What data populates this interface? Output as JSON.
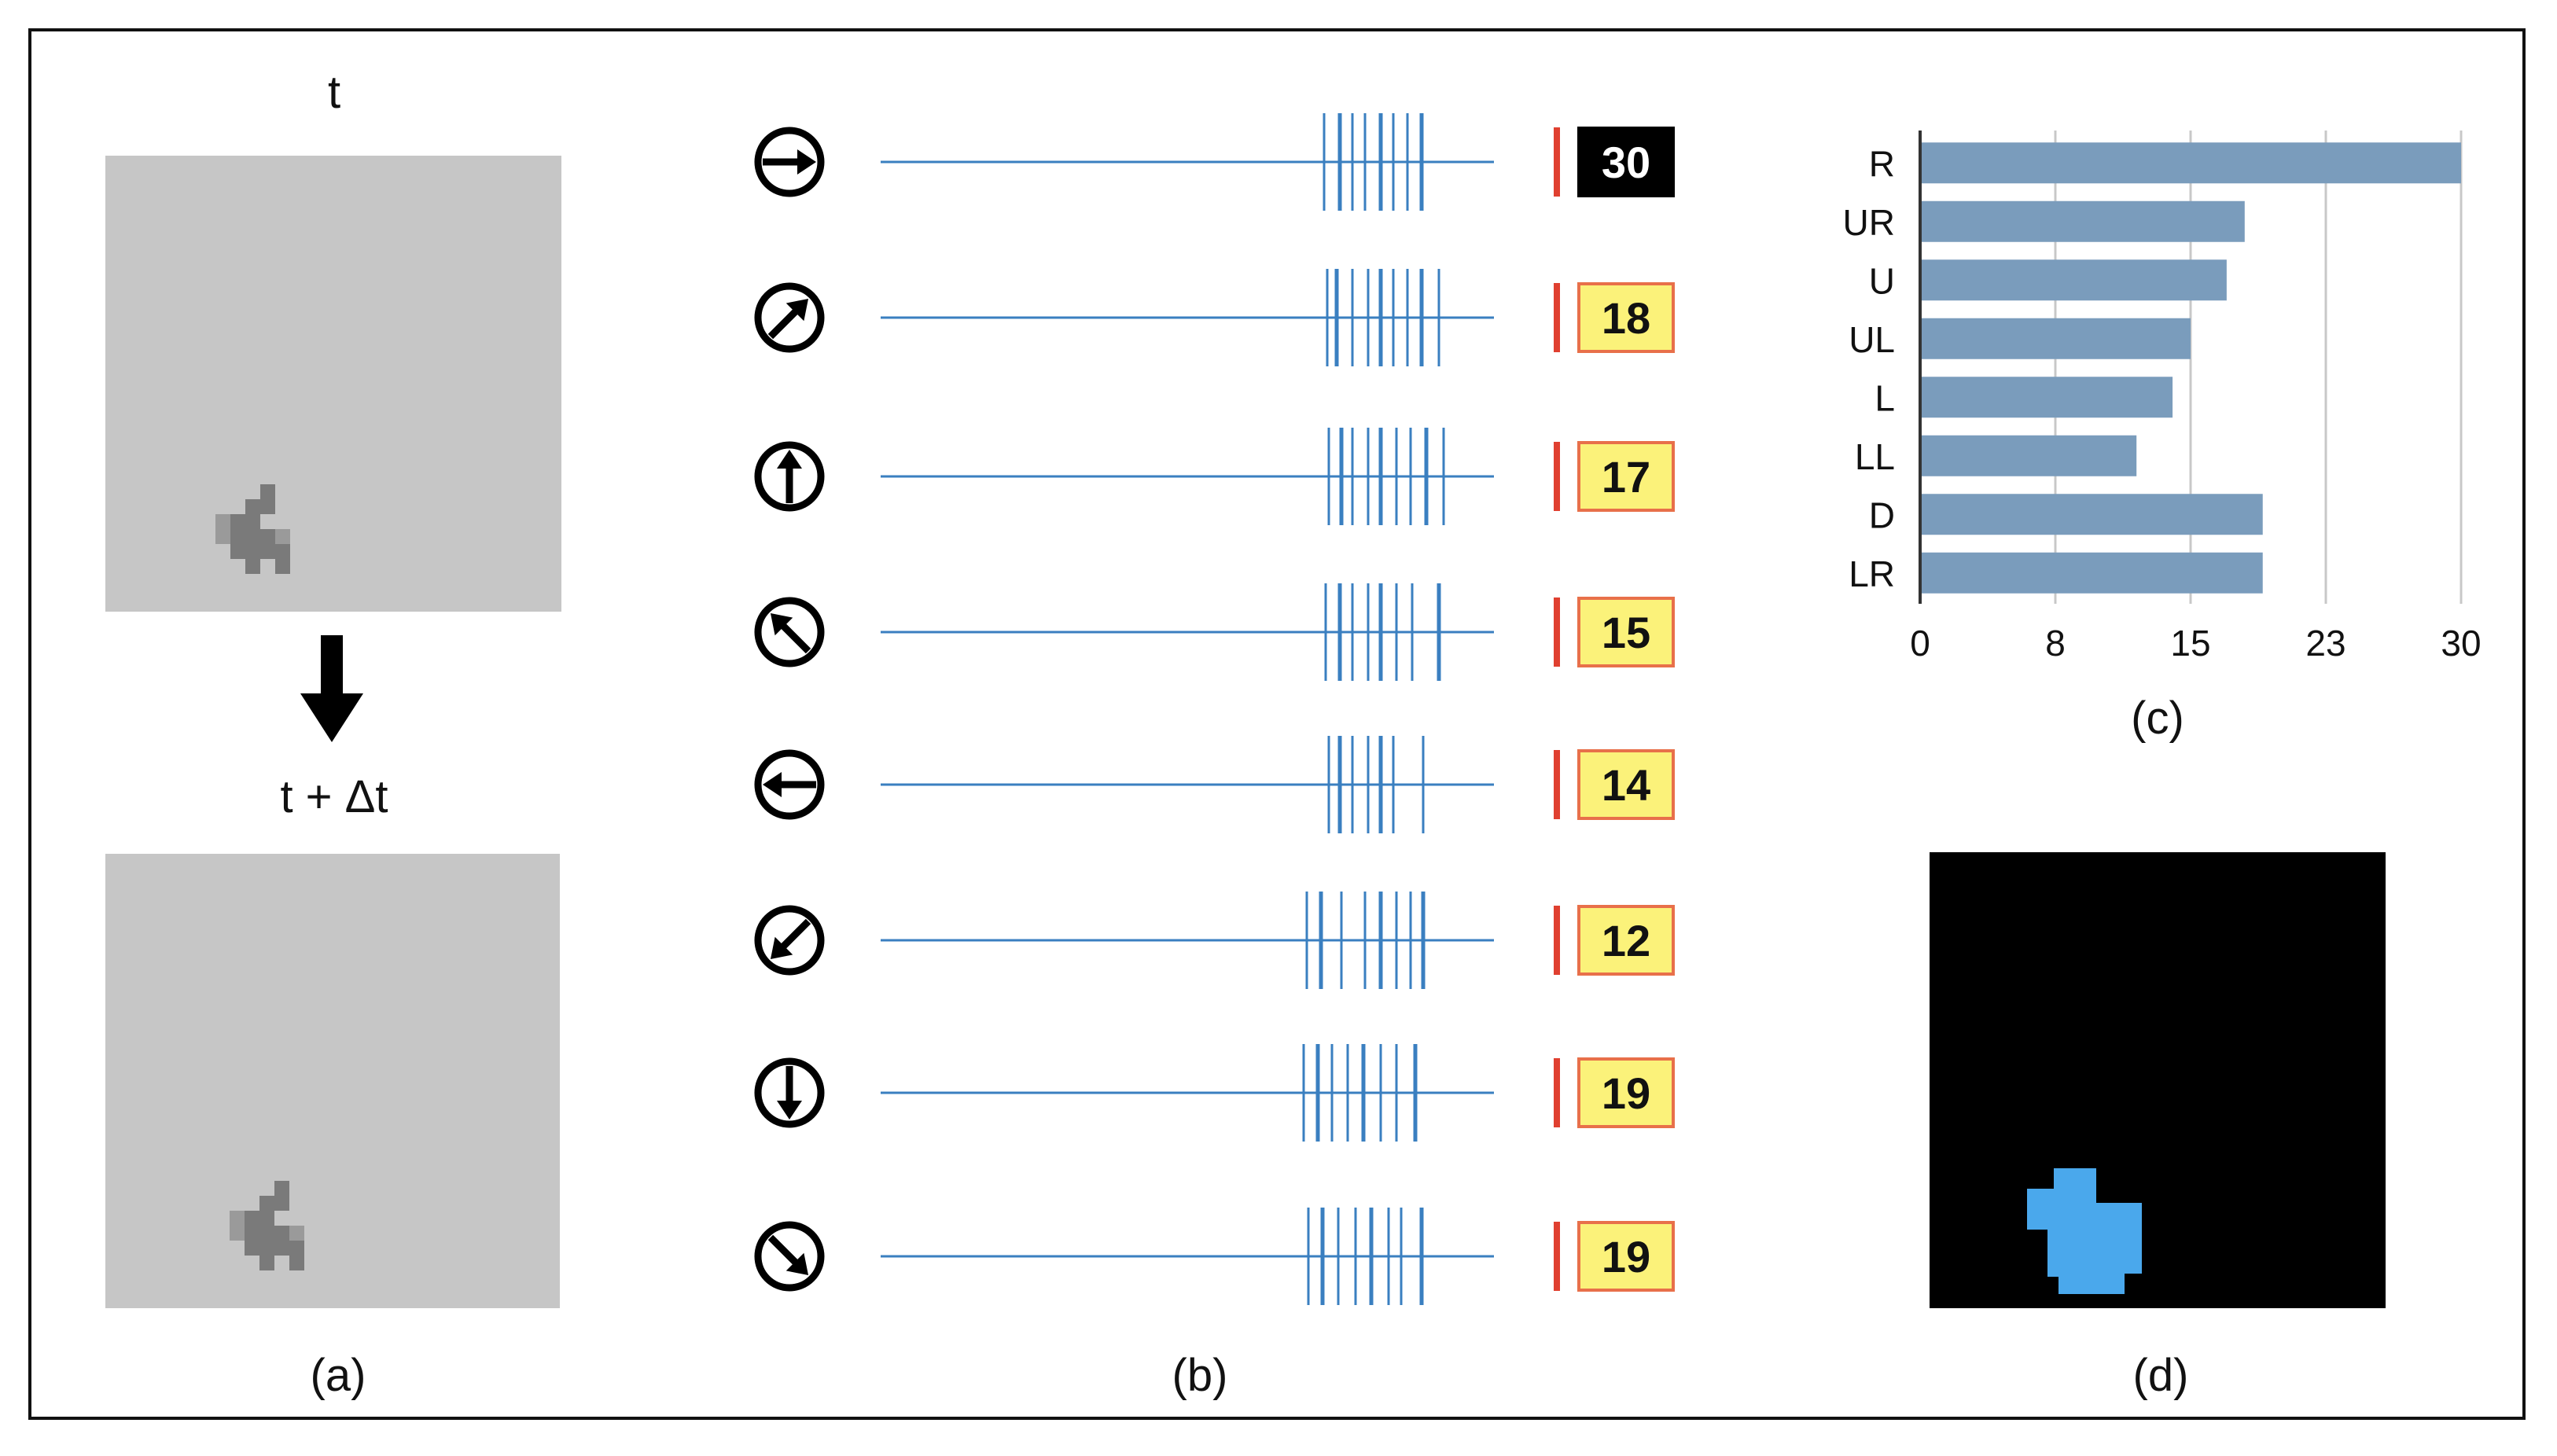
{
  "panel_a": {
    "label_t": "t",
    "label_t_dt": "t + Δt",
    "caption": "(a)"
  },
  "panel_b": {
    "caption": "(b)",
    "rows": [
      {
        "direction_icon": "arrow-right-circle-icon",
        "count": "30",
        "highlight": true
      },
      {
        "direction_icon": "arrow-up-right-circle-icon",
        "count": "18",
        "highlight": false
      },
      {
        "direction_icon": "arrow-up-circle-icon",
        "count": "17",
        "highlight": false
      },
      {
        "direction_icon": "arrow-up-left-circle-icon",
        "count": "15",
        "highlight": false
      },
      {
        "direction_icon": "arrow-left-circle-icon",
        "count": "14",
        "highlight": false
      },
      {
        "direction_icon": "arrow-down-left-circle-icon",
        "count": "12",
        "highlight": false
      },
      {
        "direction_icon": "arrow-down-circle-icon",
        "count": "19",
        "highlight": false
      },
      {
        "direction_icon": "arrow-down-right-circle-icon",
        "count": "19",
        "highlight": false
      }
    ],
    "colors": {
      "spike_line": "#3a7fc0",
      "badge_fill": "#fbf27a",
      "badge_border": "#e8704a",
      "highlight_fill": "#000000"
    }
  },
  "panel_c": {
    "caption": "(c)"
  },
  "panel_d": {
    "caption": "(d)",
    "blob_color": "#4aa8ec"
  },
  "chart_data": {
    "type": "bar",
    "orientation": "horizontal",
    "categories": [
      "R",
      "UR",
      "U",
      "UL",
      "L",
      "LL",
      "D",
      "LR"
    ],
    "values": [
      30,
      18,
      17,
      15,
      14,
      12,
      19,
      19
    ],
    "xlim": [
      0,
      30
    ],
    "xticks": [
      "0",
      "8",
      "15",
      "23",
      "30"
    ],
    "grid": true,
    "bar_color": "#7a9cbc"
  }
}
